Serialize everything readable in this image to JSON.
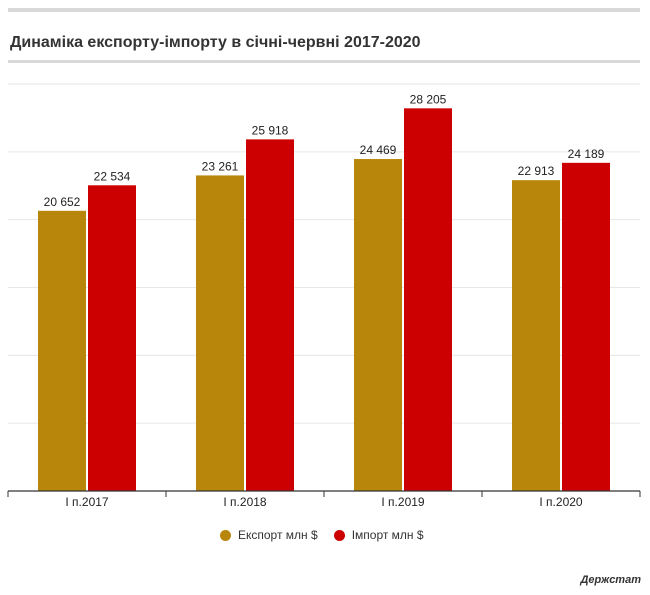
{
  "title": "Динаміка експорту-імпорту в січні-червні 2017-2020",
  "source": "Держстат",
  "colors": {
    "export": "#b8860b",
    "import": "#cc0000",
    "grid": "#e6e6e6",
    "axis": "#333333"
  },
  "chart_data": {
    "type": "bar",
    "title": "Динаміка експорту-імпорту в січні-червні 2017-2020",
    "categories": [
      "I п.2017",
      "I п.2018",
      "I п.2019",
      "I п.2020"
    ],
    "series": [
      {
        "name": "Експорт млн $",
        "values": [
          20652,
          23261,
          24469,
          22913
        ],
        "labels": [
          "20 652",
          "23 261",
          "24 469",
          "22 913"
        ]
      },
      {
        "name": "Імпорт млн $",
        "values": [
          22534,
          25918,
          28205,
          24189
        ],
        "labels": [
          "22 534",
          "25 918",
          "28 205",
          "24 189"
        ]
      }
    ],
    "xlabel": "",
    "ylabel": "",
    "ylim": [
      0,
      30000
    ],
    "grid": true,
    "legend": "bottom"
  }
}
